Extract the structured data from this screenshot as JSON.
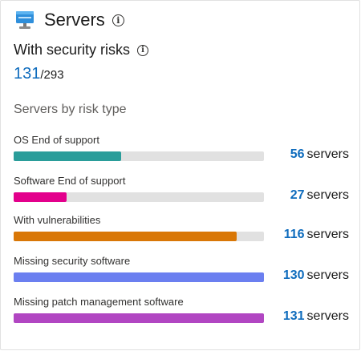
{
  "card": {
    "title": "Servers",
    "title_icon": "server-icon",
    "info_icon": "info-icon",
    "subtitle": "With security risks",
    "risk_count": "131",
    "total_count": "/293",
    "section_title": "Servers by risk type",
    "unit_label": "servers"
  },
  "risks": [
    {
      "label": "OS End of support",
      "count": "56",
      "fraction": 0.43,
      "color": "#2a9d9a"
    },
    {
      "label": "Software End of support",
      "count": "27",
      "fraction": 0.21,
      "color": "#e3008c"
    },
    {
      "label": "With vulnerabilities",
      "count": "116",
      "fraction": 0.89,
      "color": "#d97706"
    },
    {
      "label": "Missing security software",
      "count": "130",
      "fraction": 1.0,
      "color": "#6b7ff0"
    },
    {
      "label": "Missing patch management software",
      "count": "131",
      "fraction": 1.0,
      "color": "#b146c2"
    }
  ]
}
